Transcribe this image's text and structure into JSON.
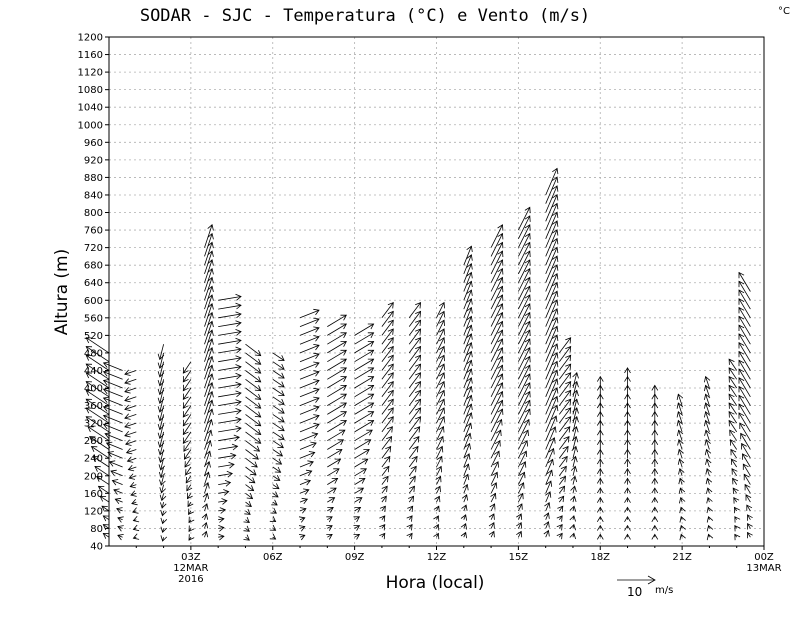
{
  "chart_data": {
    "type": "wind-barb-profile",
    "title": "SODAR - SJC - Temperatura (°C) e Vento (m/s)",
    "unit_corner": "°C",
    "xlabel": "Hora (local)",
    "ylabel": "Altura (m)",
    "xlim": [
      0,
      24
    ],
    "ylim": [
      40,
      1200
    ],
    "x_ticks": [
      {
        "x": 3,
        "label": "03Z",
        "sub1": "12MAR",
        "sub2": "2016"
      },
      {
        "x": 6,
        "label": "06Z"
      },
      {
        "x": 9,
        "label": "09Z"
      },
      {
        "x": 12,
        "label": "12Z"
      },
      {
        "x": 15,
        "label": "15Z"
      },
      {
        "x": 18,
        "label": "18Z"
      },
      {
        "x": 21,
        "label": "21Z"
      },
      {
        "x": 24,
        "label": "00Z",
        "sub1": "13MAR"
      }
    ],
    "y_ticks": [
      40,
      80,
      120,
      160,
      200,
      240,
      280,
      320,
      360,
      400,
      440,
      480,
      520,
      560,
      600,
      640,
      680,
      720,
      760,
      800,
      840,
      880,
      920,
      960,
      1000,
      1040,
      1080,
      1120,
      1160,
      1200
    ],
    "grid": true,
    "legend": {
      "label": "10",
      "unit": "m/s",
      "ref_speed_ms": 10
    },
    "profiles": [
      {
        "hour": 0.0,
        "top": 480,
        "u": -6,
        "v": 4
      },
      {
        "hour": 0.5,
        "top": 440,
        "u": -5,
        "v": 2
      },
      {
        "hour": 1.0,
        "top": 440,
        "u": -3,
        "v": -1
      },
      {
        "hour": 2.0,
        "top": 500,
        "u": -1,
        "v": -4
      },
      {
        "hour": 3.0,
        "top": 460,
        "u": -2,
        "v": -3
      },
      {
        "hour": 3.5,
        "top": 720,
        "u": 2,
        "v": 6
      },
      {
        "hour": 4.0,
        "top": 600,
        "u": 6,
        "v": 1
      },
      {
        "hour": 5.0,
        "top": 500,
        "u": 4,
        "v": -3
      },
      {
        "hour": 6.0,
        "top": 480,
        "u": 3,
        "v": -2
      },
      {
        "hour": 7.0,
        "top": 560,
        "u": 5,
        "v": 2
      },
      {
        "hour": 8.0,
        "top": 540,
        "u": 5,
        "v": 3
      },
      {
        "hour": 9.0,
        "top": 520,
        "u": 5,
        "v": 3
      },
      {
        "hour": 10.0,
        "top": 560,
        "u": 3,
        "v": 4
      },
      {
        "hour": 11.0,
        "top": 560,
        "u": 3,
        "v": 4
      },
      {
        "hour": 12.0,
        "top": 560,
        "u": 2,
        "v": 4
      },
      {
        "hour": 13.0,
        "top": 680,
        "u": 2,
        "v": 5
      },
      {
        "hour": 14.0,
        "top": 720,
        "u": 3,
        "v": 6
      },
      {
        "hour": 15.0,
        "top": 760,
        "u": 3,
        "v": 6
      },
      {
        "hour": 16.0,
        "top": 840,
        "u": 3,
        "v": 7
      },
      {
        "hour": 16.5,
        "top": 480,
        "u": 3,
        "v": 4
      },
      {
        "hour": 17.0,
        "top": 400,
        "u": 1,
        "v": 4
      },
      {
        "hour": 18.0,
        "top": 400,
        "u": 0,
        "v": 3
      },
      {
        "hour": 19.0,
        "top": 420,
        "u": 0,
        "v": 3
      },
      {
        "hour": 20.0,
        "top": 380,
        "u": 0,
        "v": 3
      },
      {
        "hour": 21.0,
        "top": 360,
        "u": -1,
        "v": 3
      },
      {
        "hour": 22.0,
        "top": 400,
        "u": -1,
        "v": 3
      },
      {
        "hour": 23.0,
        "top": 440,
        "u": -2,
        "v": 3
      },
      {
        "hour": 23.5,
        "top": 620,
        "u": -3,
        "v": 5
      }
    ]
  }
}
